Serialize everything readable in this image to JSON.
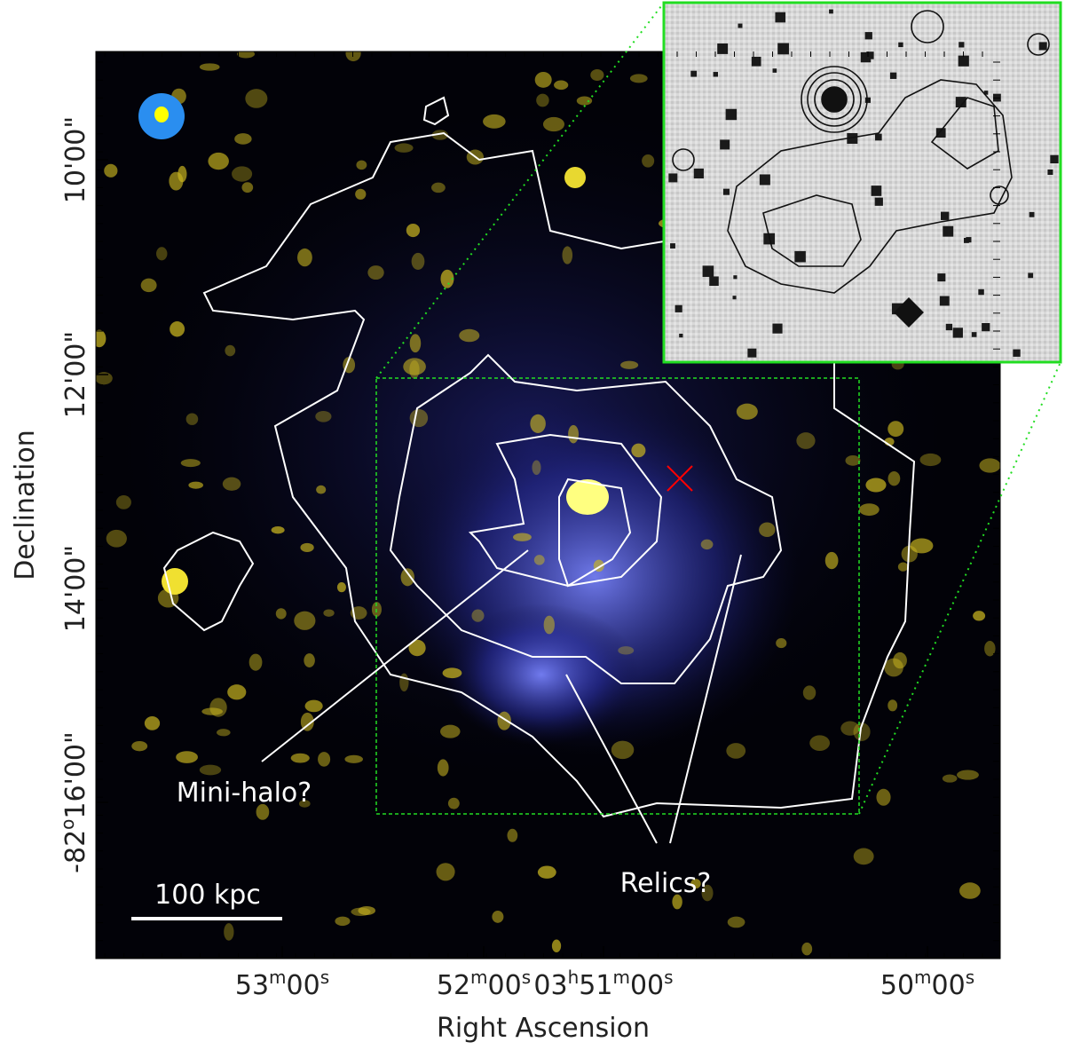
{
  "axes": {
    "x_label": "Right Ascension",
    "y_label": "Declination",
    "x_ticks": [
      [
        "53",
        "m",
        "00",
        "s"
      ],
      [
        "52",
        "m",
        "00",
        "s"
      ],
      [
        "03",
        "h",
        "51",
        "m",
        "00",
        "s"
      ],
      [
        "50",
        "m",
        "00",
        "s"
      ]
    ],
    "y_ticks": [
      [
        "10'00\""
      ],
      [
        "12'00\""
      ],
      [
        "14'00\""
      ],
      [
        "-82",
        "o",
        "16'00\""
      ]
    ]
  },
  "annotations": {
    "mini_halo": "Mini-halo?",
    "relics": "Relics?",
    "scale_bar": "100 kpc"
  }
}
